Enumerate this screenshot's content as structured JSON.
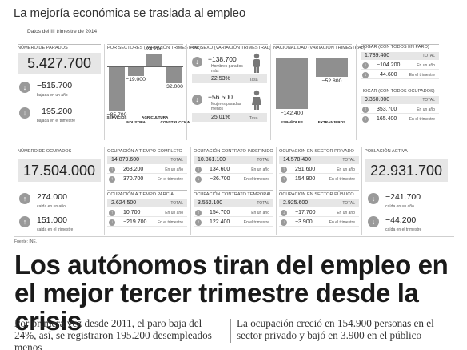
{
  "header": {
    "title": "La mejoría económica se traslada al empleo",
    "subtitle": "Datos del III trimestre de 2014"
  },
  "parados": {
    "label": "NÚMERO DE PARADOS",
    "total": "5.427.700",
    "rows": [
      {
        "value": "−515.700",
        "caption": "bajada en un año"
      },
      {
        "value": "−195.200",
        "caption": "bajada en el trimestre"
      }
    ]
  },
  "sectores": {
    "label": "POR SECTORES (variación trimestral)",
    "bars": [
      {
        "category": "SERVICIOS",
        "value": -85700,
        "display": "−85.700"
      },
      {
        "category": "INDUSTRIA",
        "value": -19000,
        "display": "−19.000"
      },
      {
        "category": "AGRICULTURA",
        "value": 24200,
        "display": "24.200"
      },
      {
        "category": "CONSTRUCCIÓN",
        "value": -32000,
        "display": "−32.000"
      }
    ]
  },
  "sexo": {
    "label": "POR SEXO (variación trimestral)",
    "men": {
      "value": "−138.700",
      "caption": "Hombres parados más",
      "pct": "22,53%",
      "pct_label": "Tasa"
    },
    "women": {
      "value": "−56.500",
      "caption": "Mujeres paradas menos",
      "pct": "25,01%",
      "pct_label": "Tasa"
    }
  },
  "nacionalidad": {
    "label": "NACIONALIDAD (variación trimestral)",
    "bars": [
      {
        "category": "ESPAÑOLES",
        "value": -142400,
        "display": "−142.400"
      },
      {
        "category": "EXTRANJEROS",
        "value": -52800,
        "display": "−52.800"
      }
    ]
  },
  "hogar": {
    "parados": {
      "label": "HOGAR (con todos en paro)",
      "total": "1.789.400",
      "total_label": "TOTAL",
      "rows": [
        {
          "arrow": "down",
          "value": "−104.200",
          "caption": "En un año"
        },
        {
          "arrow": "down",
          "value": "−44.600",
          "caption": "En el trimestre"
        }
      ]
    },
    "ocupados": {
      "label": "HOGAR (con todos ocupados)",
      "total": "9.350.000",
      "total_label": "TOTAL",
      "rows": [
        {
          "arrow": "up",
          "value": "353.700",
          "caption": "En un año"
        },
        {
          "arrow": "up",
          "value": "165.400",
          "caption": "En el trimestre"
        }
      ]
    }
  },
  "ocupados": {
    "label": "NÚMERO DE OCUPADOS",
    "total": "17.504.000",
    "rows": [
      {
        "value": "274.000",
        "caption": "caída en un año"
      },
      {
        "value": "151.000",
        "caption": "caída en el trimestre"
      }
    ]
  },
  "small_tables": [
    {
      "label": "OCUPACIÓN A TIEMPO COMPLETO",
      "total": "14.879.600",
      "total_label": "TOTAL",
      "rows": [
        {
          "arrow": "up",
          "value": "263.200",
          "caption": "En un año"
        },
        {
          "arrow": "up",
          "value": "370.700",
          "caption": "En el trimestre"
        }
      ]
    },
    {
      "label": "OCUPACIÓN CONTRATO INDEFINIDO",
      "total": "10.861.100",
      "total_label": "TOTAL",
      "rows": [
        {
          "arrow": "up",
          "value": "134.600",
          "caption": "En un año"
        },
        {
          "arrow": "down",
          "value": "−26.700",
          "caption": "En el trimestre"
        }
      ]
    },
    {
      "label": "OCUPACIÓN EN SECTOR PRIVADO",
      "total": "14.578.400",
      "total_label": "TOTAL",
      "rows": [
        {
          "arrow": "up",
          "value": "291.600",
          "caption": "En un año"
        },
        {
          "arrow": "up",
          "value": "154.900",
          "caption": "En el trimestre"
        }
      ]
    },
    {
      "label": "OCUPACIÓN A TIEMPO PARCIAL",
      "total": "2.624.500",
      "total_label": "TOTAL",
      "rows": [
        {
          "arrow": "up",
          "value": "10.700",
          "caption": "En un año"
        },
        {
          "arrow": "down",
          "value": "−219.700",
          "caption": "En el trimestre"
        }
      ]
    },
    {
      "label": "OCUPACIÓN CONTRATO TEMPORAL",
      "total": "3.552.100",
      "total_label": "TOTAL",
      "rows": [
        {
          "arrow": "up",
          "value": "154.700",
          "caption": "En un año"
        },
        {
          "arrow": "up",
          "value": "122.400",
          "caption": "En el trimestre"
        }
      ]
    },
    {
      "label": "OCUPACIÓN EN SECTOR PÚBLICO",
      "total": "2.925.600",
      "total_label": "TOTAL",
      "rows": [
        {
          "arrow": "down",
          "value": "−17.700",
          "caption": "En un año"
        },
        {
          "arrow": "down",
          "value": "−3.900",
          "caption": "En el trimestre"
        }
      ]
    }
  ],
  "activa": {
    "label": "POBLACIÓN ACTIVA",
    "total": "22.931.700",
    "rows": [
      {
        "value": "−241.700",
        "caption": "caída en un año"
      },
      {
        "value": "−44.200",
        "caption": "caída en el trimestre"
      }
    ]
  },
  "fuente": "Fuente: INE.",
  "headline": "Los autónomos tiran del empleo en el mejor tercer trimestre desde la crisis",
  "deck_left": "Por primera vez desde 2011, el paro baja del 24%, así, se registraron 195.200 desempleados menos",
  "deck_right": "La ocupación creció en 154.900 personas en el sector privado y bajó en 3.900 en el público",
  "icons": {
    "up": "↑",
    "down": "↓"
  }
}
